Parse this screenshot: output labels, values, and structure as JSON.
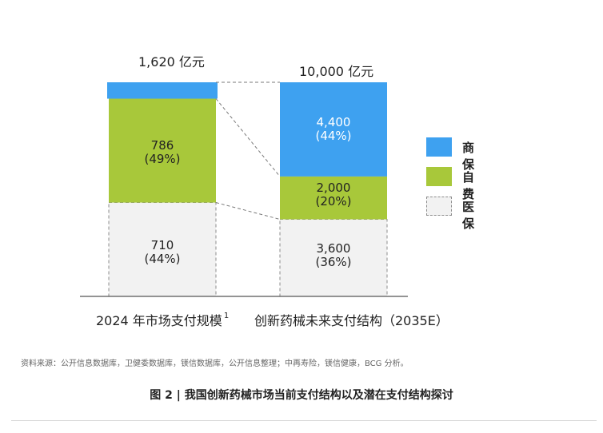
{
  "chart_data": {
    "type": "bar",
    "stacked": true,
    "unit": "亿元",
    "categories": [
      "2024 年市场支付规模",
      "创新药械未来支付结构（2035E）"
    ],
    "category_footnote": [
      "1",
      ""
    ],
    "totals": [
      "1,620 亿元",
      "10,000 亿元"
    ],
    "series": [
      {
        "name": "医保",
        "color": "#f2f2f2",
        "values": [
          710,
          3600
        ],
        "labels": [
          "710",
          "3,600"
        ],
        "shares": [
          "(44%)",
          "(36%)"
        ]
      },
      {
        "name": "自费",
        "color": "#a8c83a",
        "values": [
          786,
          2000
        ],
        "labels": [
          "786",
          "2,000"
        ],
        "shares": [
          "(49%)",
          "(20%)"
        ]
      },
      {
        "name": "商保",
        "color": "#3ea1f0",
        "values": [
          124,
          4400
        ],
        "labels": [
          "",
          "4,400"
        ],
        "shares": [
          "",
          "(44%)"
        ]
      }
    ],
    "legend_position": "right"
  },
  "source": "资料来源：公开信息数据库，卫健委数据库，镁信数据库，公开信息整理；中再寿险，镁信健康，BCG 分析。",
  "caption": "图 2 | 我国创新药械市场当前支付结构以及潜在支付结构探讨"
}
